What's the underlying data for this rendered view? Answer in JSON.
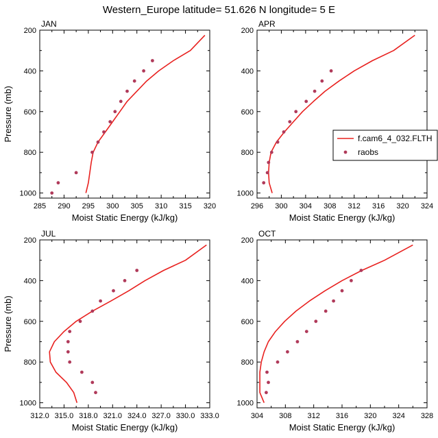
{
  "title": "Western_Europe  latitude= 51.626 N longitude= 5 E",
  "colors": {
    "model": "#e8201e",
    "obs": "#b03a5a",
    "axis": "#000000"
  },
  "legend": {
    "items": [
      "f.cam6_4_032.FLTH",
      "raobs"
    ],
    "placement": "right of APR panel"
  },
  "chart_data": [
    {
      "type": "line",
      "panel": "JAN",
      "xlabel": "Moist Static Energy (kJ/kg)",
      "ylabel": "Pressure (mb)",
      "xlim": [
        285,
        320
      ],
      "ylim": [
        1025,
        200
      ],
      "xticks": [
        285,
        290,
        295,
        300,
        305,
        310,
        315,
        320
      ],
      "xtick_labels": [
        "285",
        "290",
        "295",
        "300",
        "305",
        "310",
        "315",
        "320"
      ],
      "yticks": [
        200,
        400,
        600,
        800,
        1000
      ],
      "series": [
        {
          "name": "f.cam6_4_032.FLTH",
          "kind": "line",
          "x": [
            294.5,
            295.0,
            295.3,
            295.6,
            296.0,
            297.0,
            298.5,
            300.0,
            301.5,
            303.0,
            305.0,
            307.0,
            309.5,
            312.5,
            316.0,
            319.0
          ],
          "y": [
            1000,
            950,
            900,
            850,
            800,
            750,
            700,
            650,
            600,
            550,
            500,
            450,
            400,
            350,
            300,
            225
          ]
        },
        {
          "name": "raobs",
          "kind": "scatter",
          "x": [
            287.5,
            288.8,
            292.5,
            295.8,
            297.0,
            298.2,
            299.5,
            300.5,
            301.7,
            303.0,
            304.5,
            306.4,
            308.2
          ],
          "y": [
            1000,
            950,
            900,
            800,
            750,
            700,
            650,
            600,
            550,
            500,
            450,
            400,
            350
          ]
        }
      ]
    },
    {
      "type": "line",
      "panel": "APR",
      "xlabel": "Moist Static Energy (kJ/kg)",
      "ylabel": "",
      "xlim": [
        296,
        324
      ],
      "ylim": [
        1025,
        200
      ],
      "xticks": [
        296,
        300,
        304,
        308,
        312,
        316,
        320,
        324
      ],
      "xtick_labels": [
        "296",
        "300",
        "304",
        "308",
        "312",
        "316",
        "320",
        "324"
      ],
      "yticks": [
        200,
        400,
        600,
        800,
        1000
      ],
      "series": [
        {
          "name": "f.cam6_4_032.FLTH",
          "kind": "line",
          "x": [
            298.5,
            298.0,
            297.9,
            298.0,
            298.3,
            299.2,
            300.5,
            302.0,
            303.5,
            305.3,
            307.2,
            309.5,
            312.0,
            315.0,
            318.5,
            322.0
          ],
          "y": [
            1000,
            950,
            900,
            850,
            800,
            750,
            700,
            650,
            600,
            550,
            500,
            450,
            400,
            350,
            300,
            225
          ]
        },
        {
          "name": "raobs",
          "kind": "scatter",
          "x": [
            297.1,
            297.7,
            297.9,
            298.4,
            299.4,
            300.4,
            301.4,
            302.4,
            304.1,
            305.5,
            306.7,
            308.2
          ],
          "y": [
            950,
            900,
            850,
            800,
            750,
            700,
            650,
            600,
            550,
            500,
            450,
            400
          ]
        }
      ]
    },
    {
      "type": "line",
      "panel": "JUL",
      "xlabel": "Moist Static Energy (kJ/kg)",
      "ylabel": "Pressure (mb)",
      "xlim": [
        312,
        333
      ],
      "ylim": [
        1025,
        200
      ],
      "xticks": [
        312,
        315,
        318,
        321,
        324,
        327,
        330,
        333
      ],
      "xtick_labels": [
        "312.0",
        "315.0",
        "318.0",
        "321.0",
        "324.0",
        "327.0",
        "330.0",
        "333.0"
      ],
      "yticks": [
        200,
        400,
        600,
        800,
        1000
      ],
      "series": [
        {
          "name": "f.cam6_4_032.FLTH",
          "kind": "line",
          "x": [
            316.6,
            316.2,
            315.3,
            314.0,
            313.3,
            313.2,
            313.8,
            315.0,
            316.5,
            318.5,
            320.8,
            323.0,
            325.0,
            327.3,
            330.0,
            332.6
          ],
          "y": [
            1000,
            950,
            900,
            850,
            800,
            750,
            700,
            650,
            600,
            550,
            500,
            450,
            400,
            350,
            300,
            225
          ]
        },
        {
          "name": "raobs",
          "kind": "scatter",
          "x": [
            318.9,
            318.5,
            317.2,
            315.7,
            315.5,
            315.5,
            315.7,
            317.0,
            318.5,
            319.5,
            321.1,
            322.5,
            324.0
          ],
          "y": [
            950,
            900,
            850,
            800,
            750,
            700,
            650,
            600,
            550,
            500,
            450,
            400,
            350
          ]
        }
      ]
    },
    {
      "type": "line",
      "panel": "OCT",
      "xlabel": "Moist Static Energy (kJ/kg)",
      "ylabel": "",
      "xlim": [
        304,
        328
      ],
      "ylim": [
        1025,
        200
      ],
      "xticks": [
        304,
        308,
        312,
        316,
        320,
        324,
        328
      ],
      "xtick_labels": [
        "304",
        "308",
        "312",
        "316",
        "320",
        "324",
        "328"
      ],
      "yticks": [
        200,
        400,
        600,
        800,
        1000
      ],
      "series": [
        {
          "name": "f.cam6_4_032.FLTH",
          "kind": "line",
          "x": [
            305.0,
            304.4,
            304.4,
            304.4,
            304.6,
            305.0,
            305.6,
            306.6,
            307.9,
            309.5,
            311.4,
            313.6,
            316.0,
            318.8,
            322.0,
            326.0
          ],
          "y": [
            1000,
            950,
            900,
            850,
            800,
            750,
            700,
            650,
            600,
            550,
            500,
            450,
            400,
            350,
            300,
            225
          ]
        },
        {
          "name": "raobs",
          "kind": "scatter",
          "x": [
            305.3,
            305.6,
            305.4,
            306.9,
            308.3,
            309.7,
            311.0,
            312.3,
            313.7,
            314.8,
            316.0,
            317.3,
            318.7
          ],
          "y": [
            950,
            900,
            850,
            800,
            750,
            700,
            650,
            600,
            550,
            500,
            450,
            400,
            350
          ]
        }
      ]
    }
  ]
}
